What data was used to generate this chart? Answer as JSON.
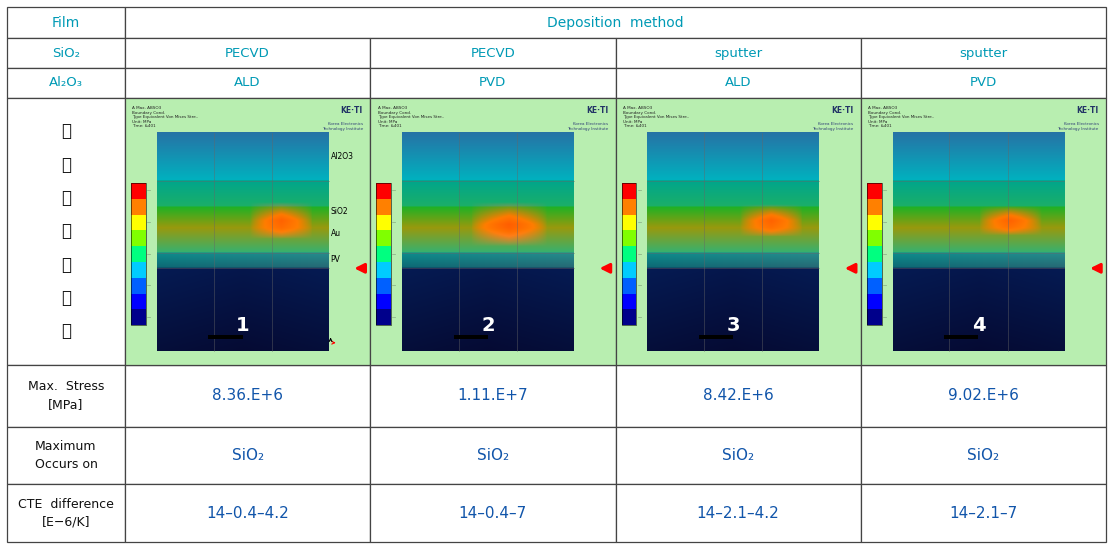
{
  "row0": [
    "Film",
    "Deposition  method"
  ],
  "row1_labels": [
    "SiO₂",
    "PECVD",
    "PECVD",
    "sputter",
    "sputter"
  ],
  "row2_labels": [
    "Al₂O₃",
    "ALD",
    "PVD",
    "ALD",
    "PVD"
  ],
  "sim_nums": [
    "1",
    "2",
    "3",
    "4"
  ],
  "left_sim_label": [
    "시",
    "물",
    "레",
    "이",
    "션",
    "결",
    "과"
  ],
  "stress_label": "Max.  Stress\n[MPa]",
  "stress_values": [
    "8.36.E+6",
    "1.11.E+7",
    "8.42.E+6",
    "9.02.E+6"
  ],
  "occurs_label": "Maximum\nOccurs on",
  "occurs_values": [
    "SiO₂",
    "SiO₂",
    "SiO₂",
    "SiO₂"
  ],
  "cte_label": "CTE  difference\n[E−6/K]",
  "cte_values": [
    "14–0.4–4.2",
    "14–0.4–7",
    "14–2.1–4.2",
    "14–2.1–7"
  ],
  "bg_color": "#ffffff",
  "border_color": "#444444",
  "cyan_text": "#009ab5",
  "value_color": "#1155aa",
  "black_text": "#111111",
  "sim_outer_bg": "#aaeaaa"
}
